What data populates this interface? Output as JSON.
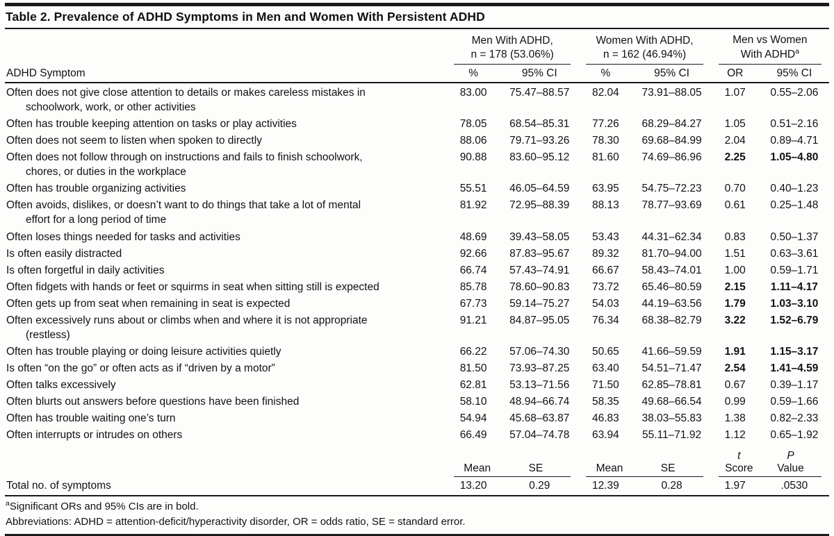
{
  "table": {
    "title": "Table 2. Prevalence of ADHD Symptoms in Men and Women With Persistent ADHD",
    "row_header": "ADHD Symptom",
    "groups": [
      {
        "line1": "Men With ADHD,",
        "line2": "n = 178 (53.06%)",
        "sup": ""
      },
      {
        "line1": "Women With ADHD,",
        "line2": "n = 162 (46.94%)",
        "sup": ""
      },
      {
        "line1": "Men vs Women",
        "line2": "With ADHD",
        "sup": "a"
      }
    ],
    "subcols": [
      "%",
      "95% CI",
      "%",
      "95% CI",
      "OR",
      "95% CI"
    ],
    "rows": [
      {
        "symptom": "Often does not give close attention to details or makes careless mistakes in\nschoolwork, work, or other activities",
        "men_pct": "83.00",
        "men_ci": "75.47–88.57",
        "women_pct": "82.04",
        "women_ci": "73.91–88.05",
        "or": "1.07",
        "or_ci": "0.55–2.06",
        "or_bold": false
      },
      {
        "symptom": "Often has trouble keeping attention on tasks or play activities",
        "men_pct": "78.05",
        "men_ci": "68.54–85.31",
        "women_pct": "77.26",
        "women_ci": "68.29–84.27",
        "or": "1.05",
        "or_ci": "0.51–2.16",
        "or_bold": false
      },
      {
        "symptom": "Often does not seem to listen when spoken to directly",
        "men_pct": "88.06",
        "men_ci": "79.71–93.26",
        "women_pct": "78.30",
        "women_ci": "69.68–84.99",
        "or": "2.04",
        "or_ci": "0.89–4.71",
        "or_bold": false
      },
      {
        "symptom": "Often does not follow through on instructions and fails to finish schoolwork,\nchores, or duties in the workplace",
        "men_pct": "90.88",
        "men_ci": "83.60–95.12",
        "women_pct": "81.60",
        "women_ci": "74.69–86.96",
        "or": "2.25",
        "or_ci": "1.05–4.80",
        "or_bold": true
      },
      {
        "symptom": "Often has trouble organizing activities",
        "men_pct": "55.51",
        "men_ci": "46.05–64.59",
        "women_pct": "63.95",
        "women_ci": "54.75–72.23",
        "or": "0.70",
        "or_ci": "0.40–1.23",
        "or_bold": false
      },
      {
        "symptom": "Often avoids, dislikes, or doesn’t want to do things that take a lot of mental\neffort for a long period of time",
        "men_pct": "81.92",
        "men_ci": "72.95–88.39",
        "women_pct": "88.13",
        "women_ci": "78.77–93.69",
        "or": "0.61",
        "or_ci": "0.25–1.48",
        "or_bold": false
      },
      {
        "symptom": "Often loses things needed for tasks and activities",
        "men_pct": "48.69",
        "men_ci": "39.43–58.05",
        "women_pct": "53.43",
        "women_ci": "44.31–62.34",
        "or": "0.83",
        "or_ci": "0.50–1.37",
        "or_bold": false
      },
      {
        "symptom": "Is often easily distracted",
        "men_pct": "92.66",
        "men_ci": "87.83–95.67",
        "women_pct": "89.32",
        "women_ci": "81.70–94.00",
        "or": "1.51",
        "or_ci": "0.63–3.61",
        "or_bold": false
      },
      {
        "symptom": "Is often forgetful in daily activities",
        "men_pct": "66.74",
        "men_ci": "57.43–74.91",
        "women_pct": "66.67",
        "women_ci": "58.43–74.01",
        "or": "1.00",
        "or_ci": "0.59–1.71",
        "or_bold": false
      },
      {
        "symptom": "Often fidgets with hands or feet or squirms in seat when sitting still is expected",
        "men_pct": "85.78",
        "men_ci": "78.60–90.83",
        "women_pct": "73.72",
        "women_ci": "65.46–80.59",
        "or": "2.15",
        "or_ci": "1.11–4.17",
        "or_bold": true
      },
      {
        "symptom": "Often gets up from seat when remaining in seat is expected",
        "men_pct": "67.73",
        "men_ci": "59.14–75.27",
        "women_pct": "54.03",
        "women_ci": "44.19–63.56",
        "or": "1.79",
        "or_ci": "1.03–3.10",
        "or_bold": true
      },
      {
        "symptom": "Often excessively runs about or climbs when and where it is not appropriate\n(restless)",
        "men_pct": "91.21",
        "men_ci": "84.87–95.05",
        "women_pct": "76.34",
        "women_ci": "68.38–82.79",
        "or": "3.22",
        "or_ci": "1.52–6.79",
        "or_bold": true
      },
      {
        "symptom": "Often has trouble playing or doing leisure activities quietly",
        "men_pct": "66.22",
        "men_ci": "57.06–74.30",
        "women_pct": "50.65",
        "women_ci": "41.66–59.59",
        "or": "1.91",
        "or_ci": "1.15–3.17",
        "or_bold": true
      },
      {
        "symptom": "Is often “on the go” or often acts as if “driven by a motor”",
        "men_pct": "81.50",
        "men_ci": "73.93–87.25",
        "women_pct": "63.40",
        "women_ci": "54.51–71.47",
        "or": "2.54",
        "or_ci": "1.41–4.59",
        "or_bold": true
      },
      {
        "symptom": "Often talks excessively",
        "men_pct": "62.81",
        "men_ci": "53.13–71.56",
        "women_pct": "71.50",
        "women_ci": "62.85–78.81",
        "or": "0.67",
        "or_ci": "0.39–1.17",
        "or_bold": false
      },
      {
        "symptom": "Often blurts out answers before questions have been finished",
        "men_pct": "58.10",
        "men_ci": "48.94–66.74",
        "women_pct": "58.35",
        "women_ci": "49.68–66.54",
        "or": "0.99",
        "or_ci": "0.59–1.66",
        "or_bold": false
      },
      {
        "symptom": "Often has trouble waiting one’s turn",
        "men_pct": "54.94",
        "men_ci": "45.68–63.87",
        "women_pct": "46.83",
        "women_ci": "38.03–55.83",
        "or": "1.38",
        "or_ci": "0.82–2.33",
        "or_bold": false
      },
      {
        "symptom": "Often interrupts or intrudes on others",
        "men_pct": "66.49",
        "men_ci": "57.04–74.78",
        "women_pct": "63.94",
        "women_ci": "55.11–71.92",
        "or": "1.12",
        "or_ci": "0.65–1.92",
        "or_bold": false
      }
    ],
    "summary_subheaders": [
      {
        "italic": "",
        "label": "Mean"
      },
      {
        "italic": "",
        "label": "SE"
      },
      {
        "italic": "",
        "label": "Mean"
      },
      {
        "italic": "",
        "label": "SE"
      },
      {
        "italic": "t",
        "label": " Score"
      },
      {
        "italic": "P",
        "label": " Value"
      }
    ],
    "summary_row": {
      "label": "Total no. of symptoms",
      "values": [
        "13.20",
        "0.29",
        "12.39",
        "0.28",
        "1.97",
        ".0530"
      ]
    },
    "footnotes": {
      "a_sup": "a",
      "a_text": "Significant ORs and 95% CIs are in bold.",
      "abbreviations": "Abbreviations: ADHD = attention-deficit/hyperactivity disorder, OR = odds ratio, SE = standard error."
    }
  }
}
